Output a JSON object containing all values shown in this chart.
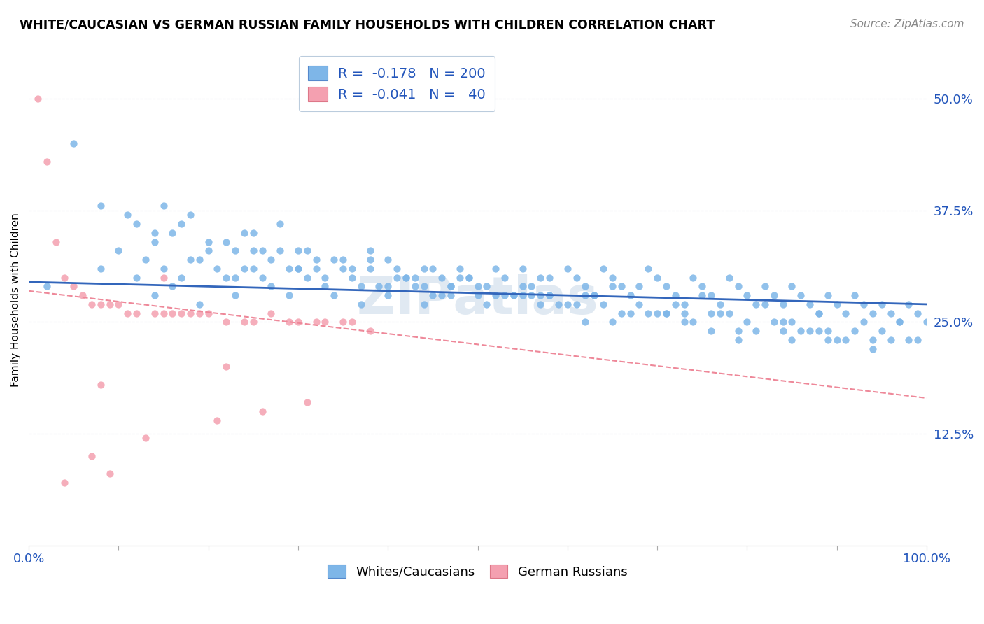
{
  "title": "WHITE/CAUCASIAN VS GERMAN RUSSIAN FAMILY HOUSEHOLDS WITH CHILDREN CORRELATION CHART",
  "source": "Source: ZipAtlas.com",
  "ylabel": "Family Households with Children",
  "xlim": [
    0,
    1
  ],
  "ylim": [
    0,
    0.55
  ],
  "yticks": [
    0.125,
    0.25,
    0.375,
    0.5
  ],
  "ytick_labels": [
    "12.5%",
    "25.0%",
    "37.5%",
    "50.0%"
  ],
  "blue_R": -0.178,
  "blue_N": 200,
  "pink_R": -0.041,
  "pink_N": 40,
  "blue_color": "#7EB6E8",
  "pink_color": "#F4A0B0",
  "blue_line_color": "#3366BB",
  "pink_line_color": "#EE8899",
  "legend_label_blue": "Whites/Caucasians",
  "legend_label_pink": "German Russians",
  "blue_scatter_x": [
    0.02,
    0.05,
    0.08,
    0.1,
    0.12,
    0.13,
    0.14,
    0.15,
    0.16,
    0.17,
    0.18,
    0.19,
    0.2,
    0.21,
    0.22,
    0.23,
    0.24,
    0.25,
    0.26,
    0.27,
    0.28,
    0.29,
    0.3,
    0.31,
    0.32,
    0.33,
    0.34,
    0.35,
    0.36,
    0.37,
    0.38,
    0.39,
    0.4,
    0.41,
    0.42,
    0.43,
    0.44,
    0.45,
    0.46,
    0.47,
    0.48,
    0.49,
    0.5,
    0.51,
    0.52,
    0.53,
    0.54,
    0.55,
    0.56,
    0.57,
    0.58,
    0.59,
    0.6,
    0.61,
    0.62,
    0.63,
    0.64,
    0.65,
    0.66,
    0.67,
    0.68,
    0.69,
    0.7,
    0.71,
    0.72,
    0.73,
    0.74,
    0.75,
    0.76,
    0.77,
    0.78,
    0.79,
    0.8,
    0.81,
    0.82,
    0.83,
    0.84,
    0.85,
    0.86,
    0.87,
    0.88,
    0.89,
    0.9,
    0.91,
    0.92,
    0.93,
    0.94,
    0.95,
    0.96,
    0.97,
    0.98,
    0.99,
    1.0,
    0.15,
    0.22,
    0.28,
    0.35,
    0.42,
    0.55,
    0.62,
    0.3,
    0.45,
    0.68,
    0.75,
    0.82,
    0.58,
    0.4,
    0.25,
    0.18,
    0.48,
    0.52,
    0.38,
    0.65,
    0.72,
    0.88,
    0.93,
    0.2,
    0.32,
    0.47,
    0.6,
    0.78,
    0.85,
    0.95,
    0.12,
    0.27,
    0.43,
    0.57,
    0.71,
    0.83,
    0.92,
    0.08,
    0.23,
    0.36,
    0.5,
    0.64,
    0.76,
    0.89,
    0.14,
    0.3,
    0.44,
    0.58,
    0.7,
    0.84,
    0.96,
    0.19,
    0.33,
    0.46,
    0.61,
    0.74,
    0.87,
    0.98,
    0.24,
    0.37,
    0.51,
    0.66,
    0.79,
    0.9,
    0.17,
    0.31,
    0.49,
    0.63,
    0.77,
    0.86,
    0.26,
    0.41,
    0.54,
    0.69,
    0.8,
    0.94,
    0.11,
    0.29,
    0.53,
    0.67,
    0.81,
    0.91,
    0.97,
    0.16,
    0.34,
    0.56,
    0.73,
    0.88,
    0.99,
    0.23,
    0.44,
    0.62,
    0.76,
    0.85,
    0.94,
    0.38,
    0.55,
    0.71,
    0.84,
    0.14,
    0.4,
    0.57,
    0.73,
    0.89,
    0.25,
    0.47,
    0.65,
    0.79
  ],
  "blue_scatter_y": [
    0.29,
    0.45,
    0.31,
    0.33,
    0.3,
    0.32,
    0.28,
    0.31,
    0.29,
    0.3,
    0.32,
    0.27,
    0.33,
    0.31,
    0.3,
    0.28,
    0.35,
    0.31,
    0.3,
    0.29,
    0.33,
    0.28,
    0.31,
    0.3,
    0.32,
    0.29,
    0.28,
    0.31,
    0.3,
    0.27,
    0.32,
    0.29,
    0.28,
    0.31,
    0.3,
    0.29,
    0.31,
    0.28,
    0.3,
    0.29,
    0.31,
    0.3,
    0.28,
    0.29,
    0.31,
    0.3,
    0.28,
    0.31,
    0.29,
    0.3,
    0.28,
    0.27,
    0.31,
    0.3,
    0.29,
    0.28,
    0.31,
    0.3,
    0.29,
    0.28,
    0.27,
    0.31,
    0.3,
    0.29,
    0.28,
    0.27,
    0.3,
    0.29,
    0.28,
    0.27,
    0.3,
    0.29,
    0.28,
    0.27,
    0.29,
    0.28,
    0.27,
    0.29,
    0.28,
    0.27,
    0.26,
    0.28,
    0.27,
    0.26,
    0.28,
    0.27,
    0.26,
    0.27,
    0.26,
    0.25,
    0.27,
    0.26,
    0.25,
    0.38,
    0.34,
    0.36,
    0.32,
    0.3,
    0.29,
    0.28,
    0.33,
    0.31,
    0.29,
    0.28,
    0.27,
    0.3,
    0.32,
    0.35,
    0.37,
    0.3,
    0.28,
    0.33,
    0.29,
    0.27,
    0.26,
    0.25,
    0.34,
    0.31,
    0.29,
    0.27,
    0.26,
    0.25,
    0.24,
    0.36,
    0.32,
    0.3,
    0.28,
    0.26,
    0.25,
    0.24,
    0.38,
    0.33,
    0.31,
    0.29,
    0.27,
    0.26,
    0.24,
    0.35,
    0.31,
    0.29,
    0.28,
    0.26,
    0.25,
    0.23,
    0.32,
    0.3,
    0.28,
    0.27,
    0.25,
    0.24,
    0.23,
    0.31,
    0.29,
    0.27,
    0.26,
    0.24,
    0.23,
    0.36,
    0.33,
    0.3,
    0.28,
    0.26,
    0.24,
    0.33,
    0.3,
    0.28,
    0.26,
    0.25,
    0.23,
    0.37,
    0.31,
    0.28,
    0.26,
    0.24,
    0.23,
    0.25,
    0.35,
    0.32,
    0.28,
    0.26,
    0.24,
    0.23,
    0.3,
    0.27,
    0.25,
    0.24,
    0.23,
    0.22,
    0.31,
    0.28,
    0.26,
    0.24,
    0.34,
    0.29,
    0.27,
    0.25,
    0.23,
    0.33,
    0.28,
    0.25,
    0.23
  ],
  "pink_scatter_x": [
    0.01,
    0.02,
    0.03,
    0.04,
    0.05,
    0.06,
    0.07,
    0.08,
    0.09,
    0.1,
    0.11,
    0.12,
    0.14,
    0.15,
    0.16,
    0.17,
    0.18,
    0.19,
    0.2,
    0.22,
    0.24,
    0.25,
    0.27,
    0.29,
    0.3,
    0.32,
    0.33,
    0.35,
    0.36,
    0.38,
    0.07,
    0.09,
    0.13,
    0.21,
    0.26,
    0.31,
    0.04,
    0.08,
    0.15,
    0.22
  ],
  "pink_scatter_y": [
    0.5,
    0.43,
    0.34,
    0.3,
    0.29,
    0.28,
    0.27,
    0.27,
    0.27,
    0.27,
    0.26,
    0.26,
    0.26,
    0.26,
    0.26,
    0.26,
    0.26,
    0.26,
    0.26,
    0.25,
    0.25,
    0.25,
    0.26,
    0.25,
    0.25,
    0.25,
    0.25,
    0.25,
    0.25,
    0.24,
    0.1,
    0.08,
    0.12,
    0.14,
    0.15,
    0.16,
    0.07,
    0.18,
    0.3,
    0.2
  ]
}
